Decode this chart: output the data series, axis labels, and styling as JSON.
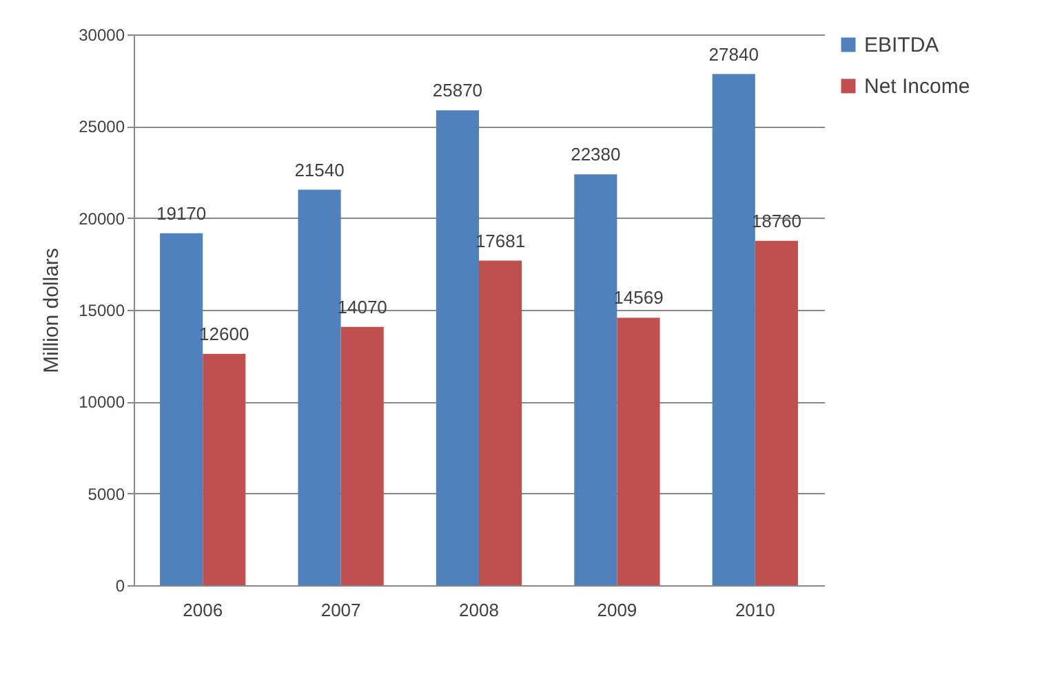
{
  "chart_data": {
    "type": "bar",
    "ylabel": "Million dollars",
    "categories": [
      "2006",
      "2007",
      "2008",
      "2009",
      "2010"
    ],
    "series": [
      {
        "name": "EBITDA",
        "color": "#4f81bd",
        "values": [
          19170,
          21540,
          25870,
          22380,
          27840
        ]
      },
      {
        "name": "Net Income",
        "color": "#c0504d",
        "values": [
          12600,
          14070,
          17681,
          14569,
          18760
        ]
      }
    ],
    "ylim": [
      0,
      30000
    ],
    "yticks": [
      0,
      5000,
      10000,
      15000,
      20000,
      25000,
      30000
    ],
    "grid": "y",
    "legend": "right",
    "data_labels": true
  }
}
